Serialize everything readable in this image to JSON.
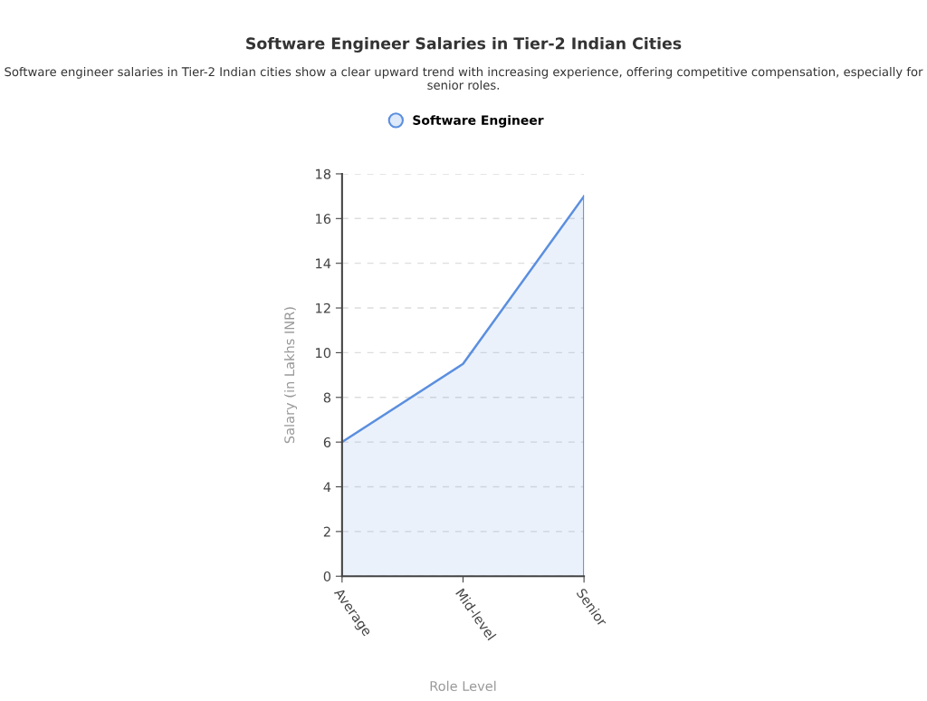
{
  "chart_data": {
    "type": "area",
    "title": "Software Engineer Salaries in Tier-2 Indian Cities",
    "subtitle": "Software engineer salaries in Tier-2 Indian cities show a clear upward trend with increasing experience, offering competitive compensation, especially for senior roles.",
    "xlabel": "Role Level",
    "ylabel": "Salary (in Lakhs INR)",
    "categories": [
      "Average",
      "Mid-level",
      "Senior"
    ],
    "series": [
      {
        "name": "Software Engineer",
        "color": "#5b8fdf",
        "values": [
          6,
          9.5,
          17
        ]
      }
    ],
    "ylim": [
      0,
      18
    ],
    "yticks": [
      0,
      2,
      4,
      6,
      8,
      10,
      12,
      14,
      16,
      18
    ],
    "grid": "y",
    "legend": "top",
    "line_style": "solid"
  }
}
